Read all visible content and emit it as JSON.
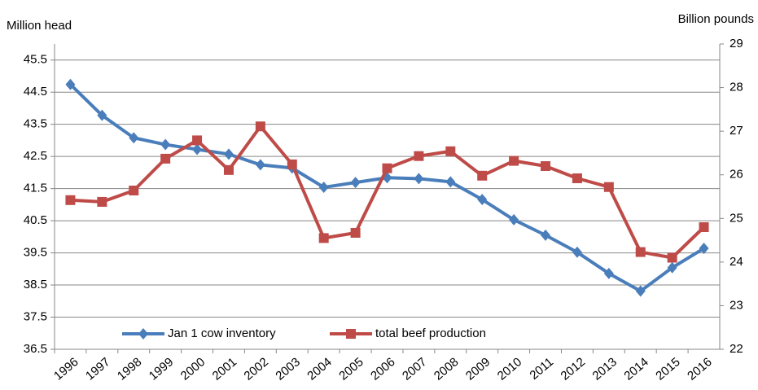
{
  "chart_data": {
    "type": "line",
    "y_label": "Million head",
    "y2_label": "Billion pounds",
    "categories": [
      "1996",
      "1997",
      "1998",
      "1999",
      "2000",
      "2001",
      "2002",
      "2003",
      "2004",
      "2005",
      "2006",
      "2007",
      "2008",
      "2009",
      "2010",
      "2011",
      "2012",
      "2013",
      "2014",
      "2015",
      "2016"
    ],
    "series": [
      {
        "name": "Jan 1 cow inventory",
        "color": "#4a7ebb",
        "marker": "diamond",
        "values": [
          44.74,
          43.78,
          43.08,
          42.87,
          42.72,
          42.57,
          42.24,
          42.14,
          41.54,
          41.69,
          41.84,
          41.81,
          41.71,
          41.16,
          40.53,
          40.05,
          39.52,
          38.86,
          38.31,
          39.04,
          39.64
        ]
      },
      {
        "name": "total beef production",
        "color": "#be4b48",
        "marker": "square",
        "axis": "y2",
        "values": [
          25.42,
          25.38,
          25.64,
          26.37,
          26.79,
          26.11,
          27.11,
          26.24,
          24.55,
          24.67,
          26.15,
          26.43,
          26.54,
          25.98,
          26.32,
          26.2,
          25.92,
          25.72,
          24.23,
          24.1,
          24.8
        ]
      }
    ],
    "ylim": [
      36.5,
      46
    ],
    "yticks": [
      36.5,
      37.5,
      38.5,
      39.5,
      40.5,
      41.5,
      42.5,
      43.5,
      44.5,
      45.5
    ],
    "y2lim": [
      22,
      29
    ],
    "y2ticks": [
      22,
      23,
      24,
      25,
      26,
      27,
      28,
      29
    ],
    "grid": true,
    "legend": "bottom"
  }
}
